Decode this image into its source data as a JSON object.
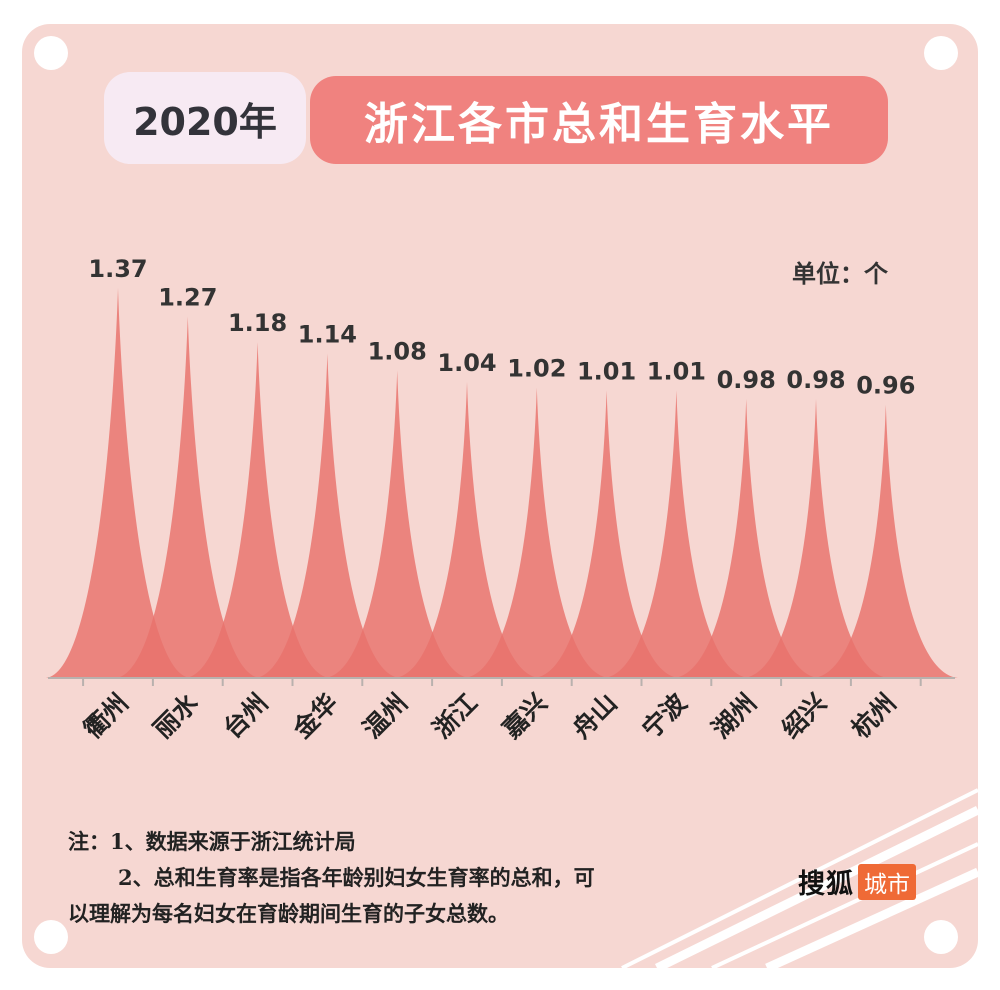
{
  "header": {
    "year": "2020年",
    "title": "浙江各市总和生育水平"
  },
  "unit_label": "单位：个",
  "chart_data": {
    "type": "bar",
    "title": "浙江各市总和生育水平",
    "subtitle": "2020年",
    "xlabel": "",
    "ylabel": "",
    "unit": "单位：个",
    "categories": [
      "衢州",
      "丽水",
      "台州",
      "金华",
      "温州",
      "浙江",
      "嘉兴",
      "舟山",
      "宁波",
      "湖州",
      "绍兴",
      "杭州"
    ],
    "values": [
      1.37,
      1.27,
      1.18,
      1.14,
      1.08,
      1.04,
      1.02,
      1.01,
      1.01,
      0.98,
      0.98,
      0.96
    ],
    "value_labels": [
      "1.37",
      "1.27",
      "1.18",
      "1.14",
      "1.08",
      "1.04",
      "1.02",
      "1.01",
      "1.01",
      "0.98",
      "0.98",
      "0.96"
    ],
    "ylim": [
      0,
      1.37
    ],
    "grid": false,
    "bar_color": "#e8716b"
  },
  "notes": {
    "line1": "注：1、数据来源于浙江统计局",
    "line2": "2、总和生育率是指各年龄别妇女生育率的总和，可",
    "line3": "以理解为每名妇女在育龄期间生育的子女总数。"
  },
  "logo": {
    "main": "搜狐",
    "tag": "城市"
  }
}
